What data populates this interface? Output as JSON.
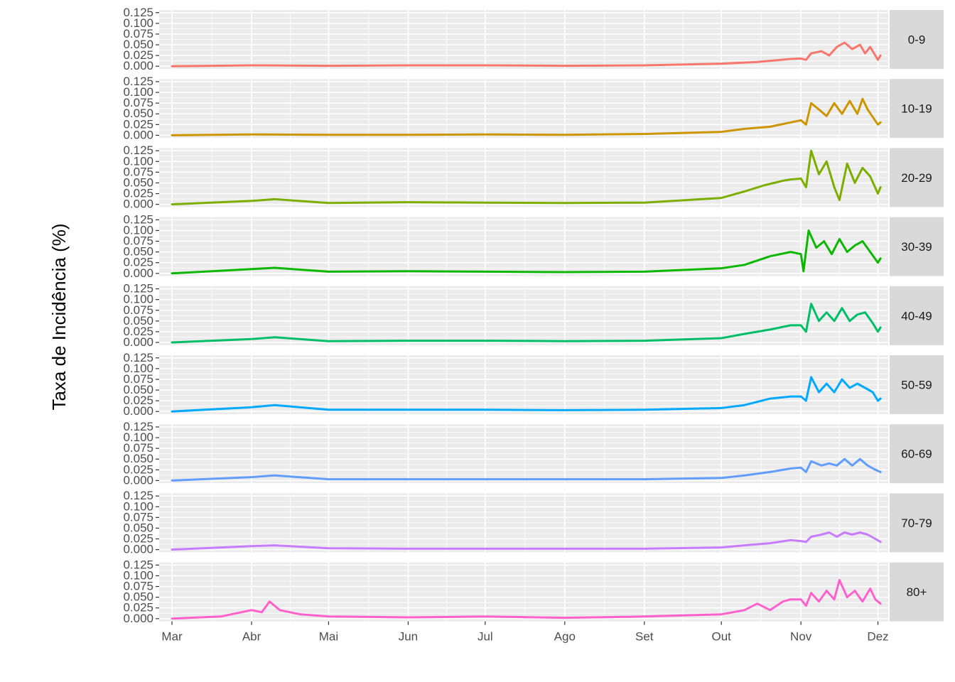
{
  "chart_data": {
    "type": "line",
    "facet": "rows",
    "title": "",
    "xlabel": "",
    "ylabel": "Taxa de Incidência (%)",
    "ylim": [
      0,
      0.125
    ],
    "yticks": [
      "0.125",
      "0.100",
      "0.075",
      "0.050",
      "0.025",
      "0.000"
    ],
    "ytick_values": [
      0.125,
      0.1,
      0.075,
      0.05,
      0.025,
      0.0
    ],
    "xlim": [
      "2020-02-25",
      "2020-12-05"
    ],
    "x_ticks": [
      {
        "date": "2020-03-01",
        "label": "Mar"
      },
      {
        "date": "2020-04-01",
        "label": "Abr"
      },
      {
        "date": "2020-05-01",
        "label": "Mai"
      },
      {
        "date": "2020-06-01",
        "label": "Jun"
      },
      {
        "date": "2020-07-01",
        "label": "Jul"
      },
      {
        "date": "2020-08-01",
        "label": "Ago"
      },
      {
        "date": "2020-09-01",
        "label": "Set"
      },
      {
        "date": "2020-10-01",
        "label": "Out"
      },
      {
        "date": "2020-11-01",
        "label": "Nov"
      },
      {
        "date": "2020-12-01",
        "label": "Dez"
      }
    ],
    "grid": true,
    "legend": "none",
    "series": [
      {
        "name": "0-9",
        "color": "#F8766D",
        "points": [
          [
            "2020-03-01",
            0.0
          ],
          [
            "2020-04-01",
            0.002
          ],
          [
            "2020-05-01",
            0.001
          ],
          [
            "2020-06-01",
            0.002
          ],
          [
            "2020-07-01",
            0.002
          ],
          [
            "2020-08-01",
            0.001
          ],
          [
            "2020-09-01",
            0.002
          ],
          [
            "2020-10-01",
            0.006
          ],
          [
            "2020-10-15",
            0.01
          ],
          [
            "2020-10-28",
            0.017
          ],
          [
            "2020-11-01",
            0.018
          ],
          [
            "2020-11-03",
            0.015
          ],
          [
            "2020-11-05",
            0.03
          ],
          [
            "2020-11-09",
            0.035
          ],
          [
            "2020-11-12",
            0.025
          ],
          [
            "2020-11-15",
            0.045
          ],
          [
            "2020-11-18",
            0.055
          ],
          [
            "2020-11-21",
            0.04
          ],
          [
            "2020-11-24",
            0.05
          ],
          [
            "2020-11-26",
            0.03
          ],
          [
            "2020-11-28",
            0.045
          ],
          [
            "2020-12-01",
            0.015
          ],
          [
            "2020-12-02",
            0.025
          ]
        ]
      },
      {
        "name": "10-19",
        "color": "#CD9600",
        "points": [
          [
            "2020-03-01",
            0.0
          ],
          [
            "2020-04-01",
            0.002
          ],
          [
            "2020-05-01",
            0.001
          ],
          [
            "2020-06-01",
            0.001
          ],
          [
            "2020-07-01",
            0.002
          ],
          [
            "2020-08-01",
            0.001
          ],
          [
            "2020-09-01",
            0.003
          ],
          [
            "2020-10-01",
            0.008
          ],
          [
            "2020-10-10",
            0.015
          ],
          [
            "2020-10-20",
            0.02
          ],
          [
            "2020-10-28",
            0.03
          ],
          [
            "2020-11-01",
            0.035
          ],
          [
            "2020-11-03",
            0.025
          ],
          [
            "2020-11-05",
            0.075
          ],
          [
            "2020-11-08",
            0.06
          ],
          [
            "2020-11-11",
            0.045
          ],
          [
            "2020-11-14",
            0.075
          ],
          [
            "2020-11-17",
            0.05
          ],
          [
            "2020-11-20",
            0.08
          ],
          [
            "2020-11-23",
            0.05
          ],
          [
            "2020-11-25",
            0.085
          ],
          [
            "2020-11-27",
            0.06
          ],
          [
            "2020-12-01",
            0.025
          ],
          [
            "2020-12-02",
            0.03
          ]
        ]
      },
      {
        "name": "20-29",
        "color": "#7CAE00",
        "points": [
          [
            "2020-03-01",
            0.0
          ],
          [
            "2020-04-01",
            0.008
          ],
          [
            "2020-04-10",
            0.012
          ],
          [
            "2020-05-01",
            0.003
          ],
          [
            "2020-06-01",
            0.005
          ],
          [
            "2020-07-01",
            0.004
          ],
          [
            "2020-08-01",
            0.003
          ],
          [
            "2020-09-01",
            0.004
          ],
          [
            "2020-10-01",
            0.015
          ],
          [
            "2020-10-10",
            0.03
          ],
          [
            "2020-10-18",
            0.045
          ],
          [
            "2020-10-25",
            0.055
          ],
          [
            "2020-10-28",
            0.058
          ],
          [
            "2020-11-01",
            0.06
          ],
          [
            "2020-11-03",
            0.04
          ],
          [
            "2020-11-05",
            0.125
          ],
          [
            "2020-11-08",
            0.07
          ],
          [
            "2020-11-11",
            0.1
          ],
          [
            "2020-11-14",
            0.04
          ],
          [
            "2020-11-16",
            0.01
          ],
          [
            "2020-11-19",
            0.095
          ],
          [
            "2020-11-22",
            0.05
          ],
          [
            "2020-11-25",
            0.085
          ],
          [
            "2020-11-28",
            0.065
          ],
          [
            "2020-12-01",
            0.025
          ],
          [
            "2020-12-02",
            0.04
          ]
        ]
      },
      {
        "name": "30-39",
        "color": "#0CB702",
        "points": [
          [
            "2020-03-01",
            0.0
          ],
          [
            "2020-04-01",
            0.01
          ],
          [
            "2020-04-10",
            0.013
          ],
          [
            "2020-05-01",
            0.004
          ],
          [
            "2020-06-01",
            0.005
          ],
          [
            "2020-07-01",
            0.004
          ],
          [
            "2020-08-01",
            0.003
          ],
          [
            "2020-09-01",
            0.004
          ],
          [
            "2020-10-01",
            0.012
          ],
          [
            "2020-10-10",
            0.02
          ],
          [
            "2020-10-20",
            0.04
          ],
          [
            "2020-10-28",
            0.05
          ],
          [
            "2020-11-01",
            0.045
          ],
          [
            "2020-11-02",
            0.005
          ],
          [
            "2020-11-04",
            0.1
          ],
          [
            "2020-11-07",
            0.06
          ],
          [
            "2020-11-10",
            0.075
          ],
          [
            "2020-11-13",
            0.045
          ],
          [
            "2020-11-16",
            0.08
          ],
          [
            "2020-11-19",
            0.05
          ],
          [
            "2020-11-22",
            0.065
          ],
          [
            "2020-11-25",
            0.075
          ],
          [
            "2020-11-28",
            0.05
          ],
          [
            "2020-12-01",
            0.025
          ],
          [
            "2020-12-02",
            0.035
          ]
        ]
      },
      {
        "name": "40-49",
        "color": "#00BE67",
        "points": [
          [
            "2020-03-01",
            0.0
          ],
          [
            "2020-04-01",
            0.008
          ],
          [
            "2020-04-10",
            0.012
          ],
          [
            "2020-05-01",
            0.003
          ],
          [
            "2020-06-01",
            0.004
          ],
          [
            "2020-07-01",
            0.004
          ],
          [
            "2020-08-01",
            0.003
          ],
          [
            "2020-09-01",
            0.004
          ],
          [
            "2020-10-01",
            0.01
          ],
          [
            "2020-10-10",
            0.02
          ],
          [
            "2020-10-20",
            0.03
          ],
          [
            "2020-10-28",
            0.04
          ],
          [
            "2020-11-01",
            0.04
          ],
          [
            "2020-11-03",
            0.025
          ],
          [
            "2020-11-05",
            0.09
          ],
          [
            "2020-11-08",
            0.05
          ],
          [
            "2020-11-11",
            0.07
          ],
          [
            "2020-11-14",
            0.05
          ],
          [
            "2020-11-17",
            0.08
          ],
          [
            "2020-11-20",
            0.05
          ],
          [
            "2020-11-23",
            0.065
          ],
          [
            "2020-11-26",
            0.07
          ],
          [
            "2020-11-29",
            0.045
          ],
          [
            "2020-12-01",
            0.025
          ],
          [
            "2020-12-02",
            0.035
          ]
        ]
      },
      {
        "name": "50-59",
        "color": "#00A9FF",
        "points": [
          [
            "2020-03-01",
            0.0
          ],
          [
            "2020-04-01",
            0.01
          ],
          [
            "2020-04-10",
            0.015
          ],
          [
            "2020-05-01",
            0.004
          ],
          [
            "2020-06-01",
            0.004
          ],
          [
            "2020-07-01",
            0.004
          ],
          [
            "2020-08-01",
            0.003
          ],
          [
            "2020-09-01",
            0.004
          ],
          [
            "2020-10-01",
            0.008
          ],
          [
            "2020-10-10",
            0.015
          ],
          [
            "2020-10-20",
            0.03
          ],
          [
            "2020-10-28",
            0.035
          ],
          [
            "2020-11-01",
            0.035
          ],
          [
            "2020-11-03",
            0.025
          ],
          [
            "2020-11-05",
            0.08
          ],
          [
            "2020-11-08",
            0.045
          ],
          [
            "2020-11-11",
            0.065
          ],
          [
            "2020-11-14",
            0.045
          ],
          [
            "2020-11-17",
            0.075
          ],
          [
            "2020-11-20",
            0.055
          ],
          [
            "2020-11-23",
            0.065
          ],
          [
            "2020-11-26",
            0.055
          ],
          [
            "2020-11-29",
            0.045
          ],
          [
            "2020-12-01",
            0.025
          ],
          [
            "2020-12-02",
            0.03
          ]
        ]
      },
      {
        "name": "60-69",
        "color": "#619CFF",
        "points": [
          [
            "2020-03-01",
            0.0
          ],
          [
            "2020-04-01",
            0.008
          ],
          [
            "2020-04-10",
            0.012
          ],
          [
            "2020-05-01",
            0.003
          ],
          [
            "2020-06-01",
            0.003
          ],
          [
            "2020-07-01",
            0.003
          ],
          [
            "2020-08-01",
            0.003
          ],
          [
            "2020-09-01",
            0.003
          ],
          [
            "2020-10-01",
            0.006
          ],
          [
            "2020-10-10",
            0.012
          ],
          [
            "2020-10-20",
            0.02
          ],
          [
            "2020-10-28",
            0.028
          ],
          [
            "2020-11-01",
            0.03
          ],
          [
            "2020-11-03",
            0.02
          ],
          [
            "2020-11-05",
            0.045
          ],
          [
            "2020-11-09",
            0.035
          ],
          [
            "2020-11-12",
            0.04
          ],
          [
            "2020-11-15",
            0.035
          ],
          [
            "2020-11-18",
            0.05
          ],
          [
            "2020-11-21",
            0.035
          ],
          [
            "2020-11-24",
            0.05
          ],
          [
            "2020-11-27",
            0.035
          ],
          [
            "2020-11-30",
            0.025
          ],
          [
            "2020-12-02",
            0.02
          ]
        ]
      },
      {
        "name": "70-79",
        "color": "#C77CFF",
        "points": [
          [
            "2020-03-01",
            0.0
          ],
          [
            "2020-04-01",
            0.008
          ],
          [
            "2020-04-10",
            0.01
          ],
          [
            "2020-05-01",
            0.003
          ],
          [
            "2020-06-01",
            0.002
          ],
          [
            "2020-07-01",
            0.002
          ],
          [
            "2020-08-01",
            0.002
          ],
          [
            "2020-09-01",
            0.002
          ],
          [
            "2020-10-01",
            0.005
          ],
          [
            "2020-10-10",
            0.01
          ],
          [
            "2020-10-20",
            0.015
          ],
          [
            "2020-10-28",
            0.022
          ],
          [
            "2020-11-01",
            0.02
          ],
          [
            "2020-11-03",
            0.018
          ],
          [
            "2020-11-05",
            0.03
          ],
          [
            "2020-11-09",
            0.035
          ],
          [
            "2020-11-12",
            0.04
          ],
          [
            "2020-11-15",
            0.03
          ],
          [
            "2020-11-18",
            0.04
          ],
          [
            "2020-11-21",
            0.035
          ],
          [
            "2020-11-24",
            0.04
          ],
          [
            "2020-11-27",
            0.035
          ],
          [
            "2020-11-30",
            0.025
          ],
          [
            "2020-12-02",
            0.018
          ]
        ]
      },
      {
        "name": "80+",
        "color": "#FF61CC",
        "points": [
          [
            "2020-03-01",
            0.0
          ],
          [
            "2020-03-20",
            0.005
          ],
          [
            "2020-03-28",
            0.015
          ],
          [
            "2020-04-01",
            0.02
          ],
          [
            "2020-04-05",
            0.015
          ],
          [
            "2020-04-08",
            0.04
          ],
          [
            "2020-04-12",
            0.02
          ],
          [
            "2020-04-20",
            0.01
          ],
          [
            "2020-05-01",
            0.005
          ],
          [
            "2020-06-01",
            0.003
          ],
          [
            "2020-07-01",
            0.005
          ],
          [
            "2020-08-01",
            0.002
          ],
          [
            "2020-09-01",
            0.005
          ],
          [
            "2020-10-01",
            0.01
          ],
          [
            "2020-10-10",
            0.02
          ],
          [
            "2020-10-15",
            0.035
          ],
          [
            "2020-10-20",
            0.02
          ],
          [
            "2020-10-25",
            0.04
          ],
          [
            "2020-10-28",
            0.045
          ],
          [
            "2020-11-01",
            0.045
          ],
          [
            "2020-11-03",
            0.03
          ],
          [
            "2020-11-05",
            0.06
          ],
          [
            "2020-11-08",
            0.04
          ],
          [
            "2020-11-11",
            0.065
          ],
          [
            "2020-11-14",
            0.045
          ],
          [
            "2020-11-16",
            0.09
          ],
          [
            "2020-11-19",
            0.05
          ],
          [
            "2020-11-22",
            0.065
          ],
          [
            "2020-11-25",
            0.04
          ],
          [
            "2020-11-28",
            0.07
          ],
          [
            "2020-11-30",
            0.045
          ],
          [
            "2020-12-02",
            0.035
          ]
        ]
      }
    ]
  }
}
